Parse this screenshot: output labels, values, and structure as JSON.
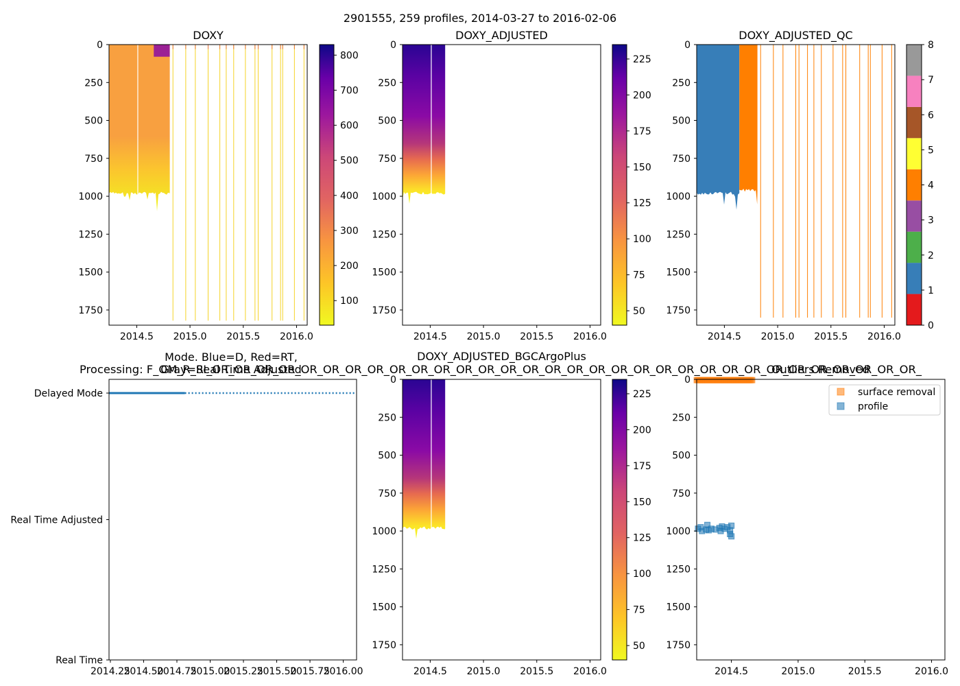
{
  "suptitle": "2901555, 259 profiles, 2014-03-27 to 2016-02-06",
  "chart_data": [
    {
      "id": "doxy",
      "type": "heatmap",
      "title": "DOXY",
      "xlim": [
        2014.24,
        2016.1
      ],
      "ylim": [
        1850,
        0
      ],
      "xticks": [
        2014.5,
        2015.0,
        2015.5,
        2016.0
      ],
      "xtick_labels": [
        "2014.5",
        "2015.0",
        "2015.5",
        "2016.0"
      ],
      "yticks": [
        0,
        250,
        500,
        750,
        1000,
        1250,
        1500,
        1750
      ],
      "ytick_labels": [
        "0",
        "250",
        "500",
        "750",
        "1000",
        "1250",
        "1500",
        "1750"
      ],
      "colormap": "plasma_r",
      "colorbar": {
        "range": [
          30,
          830
        ],
        "ticks": [
          100,
          200,
          300,
          400,
          500,
          600,
          700,
          800
        ],
        "labels": [
          "100",
          "200",
          "300",
          "400",
          "500",
          "600",
          "700",
          "800"
        ]
      },
      "dense_profiles": {
        "x_start": 2014.24,
        "x_end": 2014.81,
        "max_depth": 980
      },
      "surface_patch": {
        "x_start": 2014.66,
        "x_end": 2014.81,
        "depth": 80
      },
      "sparse_profiles_x": [
        2014.84,
        2014.96,
        2015.05,
        2015.17,
        2015.28,
        2015.34,
        2015.41,
        2015.52,
        2015.61,
        2015.64,
        2015.77,
        2015.85,
        2015.87,
        2015.98,
        2016.07
      ],
      "sparse_profile_depth": 1820
    },
    {
      "id": "doxy_adjusted",
      "type": "heatmap",
      "title": "DOXY_ADJUSTED",
      "xlim": [
        2014.24,
        2016.1
      ],
      "ylim": [
        1850,
        0
      ],
      "xticks": [
        2014.5,
        2015.0,
        2015.5,
        2016.0
      ],
      "xtick_labels": [
        "2014.5",
        "2015.0",
        "2015.5",
        "2016.0"
      ],
      "yticks": [
        0,
        250,
        500,
        750,
        1000,
        1250,
        1500,
        1750
      ],
      "ytick_labels": [
        "0",
        "250",
        "500",
        "750",
        "1000",
        "1250",
        "1500",
        "1750"
      ],
      "colormap": "plasma_r",
      "colorbar": {
        "range": [
          40,
          235
        ],
        "ticks": [
          50,
          75,
          100,
          125,
          150,
          175,
          200,
          225
        ],
        "labels": [
          "50",
          "75",
          "100",
          "125",
          "150",
          "175",
          "200",
          "225"
        ]
      },
      "dense_profiles": {
        "x_start": 2014.24,
        "x_end": 2014.64,
        "max_depth": 980
      }
    },
    {
      "id": "doxy_adjusted_qc",
      "type": "heatmap",
      "title": "DOXY_ADJUSTED_QC",
      "xlim": [
        2014.24,
        2016.1
      ],
      "ylim": [
        1850,
        0
      ],
      "xticks": [
        2014.5,
        2015.0,
        2015.5,
        2016.0
      ],
      "xtick_labels": [
        "2014.5",
        "2015.0",
        "2015.5",
        "2016.0"
      ],
      "yticks": [
        0,
        250,
        500,
        750,
        1000,
        1250,
        1500,
        1750
      ],
      "ytick_labels": [
        "0",
        "250",
        "500",
        "750",
        "1000",
        "1250",
        "1500",
        "1750"
      ],
      "colorbar": {
        "range": [
          0,
          8
        ],
        "ticks": [
          0,
          1,
          2,
          3,
          4,
          5,
          6,
          7,
          8
        ],
        "labels": [
          "0",
          "1",
          "2",
          "3",
          "4",
          "5",
          "6",
          "7",
          "8"
        ],
        "colors": [
          "#e41a1c",
          "#377eb8",
          "#4daf4a",
          "#984ea3",
          "#ff7f00",
          "#ffff33",
          "#a65628",
          "#f781bf",
          "#999999"
        ]
      },
      "qc1_block": {
        "x_start": 2014.24,
        "x_end": 2014.64,
        "max_depth": 980
      },
      "qc4_block": {
        "x_start": 2014.64,
        "x_end": 2014.81,
        "max_depth": 960
      },
      "sparse_profiles_x": [
        2014.84,
        2014.96,
        2015.05,
        2015.17,
        2015.2,
        2015.28,
        2015.34,
        2015.41,
        2015.52,
        2015.61,
        2015.64,
        2015.77,
        2015.85,
        2015.87,
        2015.98,
        2016.07
      ],
      "sparse_profile_depth": 1800
    },
    {
      "id": "mode",
      "type": "line",
      "title_lines": [
        "Mode. Blue=D, Red=RT,",
        "Gray=Real Time Adjusted",
        "Processing: F_OM_R_SI_OR_OR_OR_OR_OR_OR_OR_OR_OR_OR_OR_OR_OR_OR_OR_OR_OR_OR_OR_OR_OR_OR_OR_OR_OR_OR_OR_OR_OR_OR_OR_OR_"
      ],
      "xlim": [
        2014.24,
        2016.1
      ],
      "xticks": [
        2014.25,
        2014.5,
        2014.75,
        2015.0,
        2015.25,
        2015.5,
        2015.75,
        2016.0
      ],
      "xtick_labels": [
        "2014.25",
        "2014.50",
        "2014.75",
        "2015.00",
        "2015.25",
        "2015.50",
        "2015.75",
        "2016.00"
      ],
      "ycategories": [
        "Real Time",
        "Real Time Adjusted",
        "Delayed Mode"
      ],
      "series": [
        {
          "name": "solid",
          "x": [
            2014.24,
            2014.81
          ],
          "y": "Delayed Mode",
          "color": "#1f77b4"
        },
        {
          "name": "dotted",
          "x": [
            2014.81,
            2016.1
          ],
          "y": "Delayed Mode",
          "color": "#1f77b4"
        }
      ]
    },
    {
      "id": "doxy_bgc",
      "type": "heatmap",
      "title": "DOXY_ADJUSTED_BGCArgoPlus",
      "xlim": [
        2014.24,
        2016.1
      ],
      "ylim": [
        1850,
        0
      ],
      "xticks": [
        2014.5,
        2015.0,
        2015.5,
        2016.0
      ],
      "xtick_labels": [
        "2014.5",
        "2015.0",
        "2015.5",
        "2016.0"
      ],
      "yticks": [
        0,
        250,
        500,
        750,
        1000,
        1250,
        1500,
        1750
      ],
      "ytick_labels": [
        "0",
        "250",
        "500",
        "750",
        "1000",
        "1250",
        "1500",
        "1750"
      ],
      "colormap": "plasma_r",
      "colorbar": {
        "range": [
          40,
          235
        ],
        "ticks": [
          50,
          75,
          100,
          125,
          150,
          175,
          200,
          225
        ],
        "labels": [
          "50",
          "75",
          "100",
          "125",
          "150",
          "175",
          "200",
          "225"
        ]
      },
      "dense_profiles": {
        "x_start": 2014.24,
        "x_end": 2014.64,
        "max_depth": 980
      }
    },
    {
      "id": "outliers",
      "type": "scatter",
      "title": "Outliers Removed",
      "xlim": [
        2014.24,
        2016.1
      ],
      "ylim": [
        1850,
        0
      ],
      "xticks": [
        2014.5,
        2015.0,
        2015.5,
        2016.0
      ],
      "xtick_labels": [
        "2014.5",
        "2015.0",
        "2015.5",
        "2016.0"
      ],
      "yticks": [
        0,
        250,
        500,
        750,
        1000,
        1250,
        1500,
        1750
      ],
      "ytick_labels": [
        "0",
        "250",
        "500",
        "750",
        "1000",
        "1250",
        "1500",
        "1750"
      ],
      "legend": {
        "position": "top-right",
        "entries": [
          "surface removal",
          "profile"
        ]
      },
      "series": [
        {
          "name": "surface removal",
          "color": "#ff7f0e",
          "x_range": [
            2014.24,
            2014.66
          ],
          "y": 5
        },
        {
          "name": "profile",
          "color": "#1f77b4",
          "points": [
            [
              2014.25,
              985
            ],
            [
              2014.27,
              975
            ],
            [
              2014.28,
              1000
            ],
            [
              2014.31,
              990
            ],
            [
              2014.32,
              960
            ],
            [
              2014.33,
              995
            ],
            [
              2014.35,
              985
            ],
            [
              2014.38,
              990
            ],
            [
              2014.41,
              980
            ],
            [
              2014.42,
              1000
            ],
            [
              2014.43,
              970
            ],
            [
              2014.45,
              985
            ],
            [
              2014.47,
              975
            ],
            [
              2014.49,
              995
            ],
            [
              2014.49,
              1020
            ],
            [
              2014.5,
              1035
            ],
            [
              2014.5,
              965
            ]
          ]
        }
      ]
    }
  ]
}
